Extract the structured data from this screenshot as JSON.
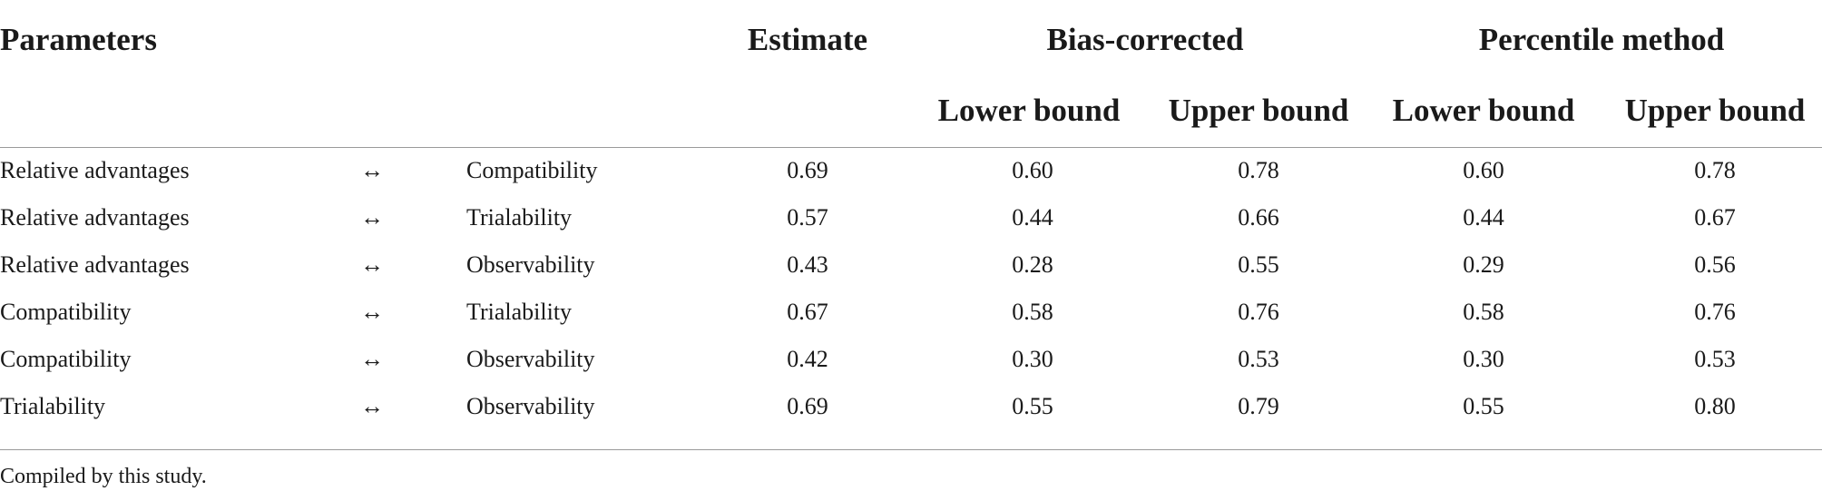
{
  "table": {
    "headers": {
      "parameters": "Parameters",
      "estimate": "Estimate",
      "bias_corrected": "Bias-corrected",
      "percentile_method": "Percentile method",
      "lower_bound_1": "Lower bound",
      "upper_bound_1": "Upper bound",
      "lower_bound_2": "Lower bound",
      "upper_bound_2": "Upper bound"
    },
    "rows": [
      {
        "param_a": "Relative advantages",
        "relation": "↔",
        "param_b": "Compatibility",
        "estimate": "0.69",
        "bc_lower": "0.60",
        "bc_upper": "0.78",
        "pm_lower": "0.60",
        "pm_upper": "0.78"
      },
      {
        "param_a": "Relative advantages",
        "relation": "↔",
        "param_b": "Trialability",
        "estimate": "0.57",
        "bc_lower": "0.44",
        "bc_upper": "0.66",
        "pm_lower": "0.44",
        "pm_upper": "0.67"
      },
      {
        "param_a": "Relative advantages",
        "relation": "↔",
        "param_b": "Observability",
        "estimate": "0.43",
        "bc_lower": "0.28",
        "bc_upper": "0.55",
        "pm_lower": "0.29",
        "pm_upper": "0.56"
      },
      {
        "param_a": "Compatibility",
        "relation": "↔",
        "param_b": "Trialability",
        "estimate": "0.67",
        "bc_lower": "0.58",
        "bc_upper": "0.76",
        "pm_lower": "0.58",
        "pm_upper": "0.76"
      },
      {
        "param_a": "Compatibility",
        "relation": "↔",
        "param_b": "Observability",
        "estimate": "0.42",
        "bc_lower": "0.30",
        "bc_upper": "0.53",
        "pm_lower": "0.30",
        "pm_upper": "0.53"
      },
      {
        "param_a": "Trialability",
        "relation": "↔",
        "param_b": "Observability",
        "estimate": "0.69",
        "bc_lower": "0.55",
        "bc_upper": "0.79",
        "pm_lower": "0.55",
        "pm_upper": "0.80"
      }
    ],
    "footnote": "Compiled by this study."
  }
}
